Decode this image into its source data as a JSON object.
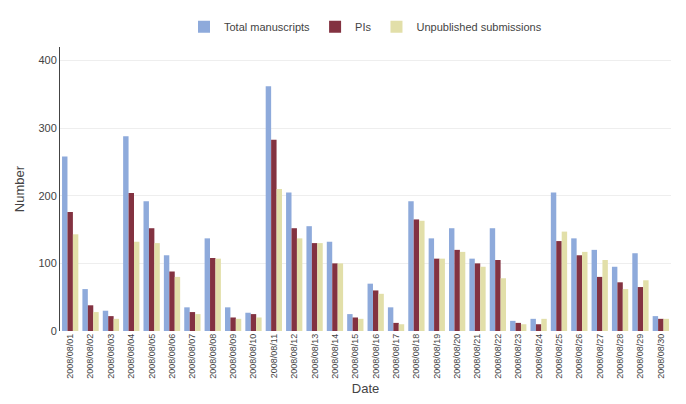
{
  "chart_data": {
    "type": "bar",
    "xlabel": "Date",
    "ylabel": "Number",
    "categories": [
      "2008/08/01",
      "2008/08/02",
      "2008/08/03",
      "2008/08/04",
      "2008/08/05",
      "2008/08/06",
      "2008/08/07",
      "2008/08/08",
      "2008/08/09",
      "2008/08/10",
      "2008/08/11",
      "2008/08/12",
      "2008/08/13",
      "2008/08/14",
      "2008/08/15",
      "2008/08/16",
      "2008/08/17",
      "2008/08/18",
      "2008/08/19",
      "2008/08/20",
      "2008/08/21",
      "2008/08/22",
      "2008/08/23",
      "2008/08/24",
      "2008/08/25",
      "2008/08/26",
      "2008/08/27",
      "2008/08/28",
      "2008/08/29",
      "2008/08/30"
    ],
    "series": [
      {
        "name": "Total manuscripts",
        "color": "#8eaadb",
        "values": [
          258,
          62,
          30,
          288,
          192,
          112,
          35,
          137,
          35,
          27,
          362,
          205,
          155,
          132,
          25,
          70,
          35,
          192,
          137,
          152,
          107,
          152,
          15,
          18,
          205,
          137,
          120,
          95,
          115,
          22
        ]
      },
      {
        "name": "PIs",
        "color": "#833241",
        "values": [
          176,
          38,
          22,
          204,
          152,
          88,
          28,
          108,
          20,
          25,
          283,
          152,
          130,
          100,
          20,
          60,
          12,
          165,
          107,
          120,
          100,
          105,
          12,
          10,
          133,
          112,
          80,
          72,
          65,
          18
        ]
      },
      {
        "name": "Unpublished submissions",
        "color": "#e2dfa9",
        "values": [
          143,
          28,
          18,
          132,
          130,
          80,
          25,
          107,
          18,
          20,
          210,
          137,
          130,
          100,
          18,
          55,
          10,
          163,
          107,
          117,
          95,
          78,
          10,
          18,
          147,
          117,
          105,
          62,
          75,
          18
        ]
      }
    ],
    "ylim": [
      0,
      420
    ],
    "yticks": [
      0,
      100,
      200,
      300,
      400
    ],
    "grid": true,
    "legend": "top"
  }
}
